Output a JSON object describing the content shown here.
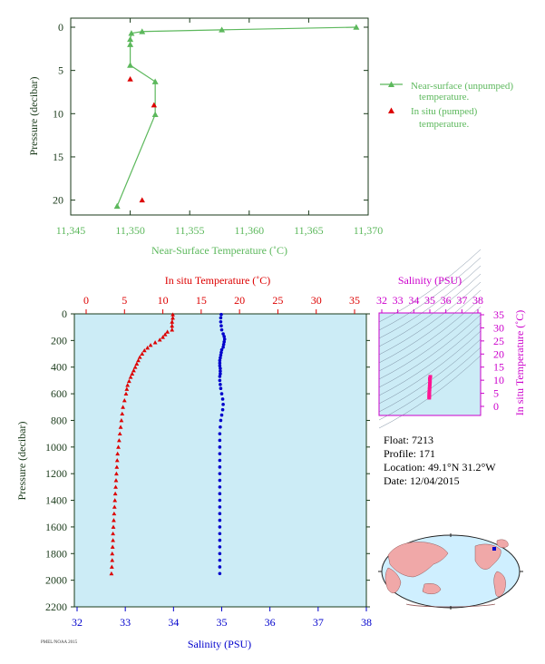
{
  "colors": {
    "green": "#5cb85c",
    "red": "#dd0000",
    "blue": "#0000cc",
    "magenta": "#cc00cc",
    "pink": "#ff1493",
    "plot_bg": "#ccecf6",
    "axis_dark": "#1a3a1a"
  },
  "info": {
    "float": "Float:  7213",
    "profile": "Profile:  171",
    "location": "Location:  49.1°N  31.2°W",
    "date": "Date:  12/04/2015"
  },
  "footer_code": "PMEL/NOAA 2015",
  "chart_data": [
    {
      "type": "line",
      "id": "near_surface",
      "xlabel": "Near-Surface Temperature (˚C)",
      "ylabel": "Pressure (decibar)",
      "xlim": [
        11.345,
        11.37
      ],
      "ylim": [
        0,
        22
      ],
      "y_inverted": true,
      "xticks": [
        "11,345",
        "11,350",
        "11,355",
        "11,360",
        "11,365",
        "11,370"
      ],
      "yticks": [
        "0",
        "5",
        "10",
        "15",
        "20"
      ],
      "legend_position": "right",
      "series": [
        {
          "name": "Near-surface (unpumped) temperature.",
          "marker": "triangle",
          "line": true,
          "points": [
            [
              11.369,
              0.0
            ],
            [
              11.3577,
              0.3
            ],
            [
              11.351,
              0.5
            ],
            [
              11.3501,
              0.7
            ],
            [
              11.35,
              1.4
            ],
            [
              11.35,
              2.0
            ],
            [
              11.35,
              4.4
            ],
            [
              11.3521,
              6.3
            ],
            [
              11.3521,
              10.1
            ],
            [
              11.3489,
              20.7
            ]
          ]
        },
        {
          "name": "In situ (pumped) temperature.",
          "marker": "triangle",
          "line": false,
          "points": [
            [
              11.35,
              6.0
            ],
            [
              11.352,
              9.0
            ],
            [
              11.351,
              20.0
            ]
          ]
        }
      ]
    },
    {
      "type": "scatter",
      "id": "profile",
      "title_top": "In situ Temperature (˚C)",
      "xlabel": "Salinity (PSU)",
      "ylabel": "Pressure (decibar)",
      "temp_lim": [
        0,
        35
      ],
      "sal_lim": [
        32,
        38
      ],
      "ylim": [
        0,
        2200
      ],
      "y_inverted": true,
      "temp_ticks": [
        "0",
        "5",
        "10",
        "15",
        "20",
        "25",
        "30",
        "35"
      ],
      "sal_ticks": [
        "32",
        "33",
        "34",
        "35",
        "36",
        "37",
        "38"
      ],
      "yticks": [
        "0",
        "200",
        "400",
        "600",
        "800",
        "1000",
        "1200",
        "1400",
        "1600",
        "1800",
        "2000",
        "2200"
      ],
      "temperature_profile": [
        [
          11.3,
          5
        ],
        [
          11.3,
          30
        ],
        [
          11.2,
          60
        ],
        [
          11.2,
          90
        ],
        [
          11.2,
          120
        ],
        [
          10.6,
          135
        ],
        [
          10.3,
          155
        ],
        [
          10.0,
          175
        ],
        [
          9.6,
          195
        ],
        [
          9.0,
          215
        ],
        [
          8.4,
          235
        ],
        [
          8.0,
          255
        ],
        [
          7.6,
          275
        ],
        [
          7.3,
          300
        ],
        [
          7.0,
          325
        ],
        [
          6.8,
          350
        ],
        [
          6.6,
          375
        ],
        [
          6.4,
          400
        ],
        [
          6.2,
          425
        ],
        [
          6.0,
          450
        ],
        [
          5.8,
          475
        ],
        [
          5.6,
          505
        ],
        [
          5.4,
          535
        ],
        [
          5.3,
          565
        ],
        [
          5.2,
          600
        ],
        [
          5.0,
          650
        ],
        [
          4.8,
          700
        ],
        [
          4.7,
          750
        ],
        [
          4.6,
          800
        ],
        [
          4.5,
          850
        ],
        [
          4.4,
          900
        ],
        [
          4.3,
          950
        ],
        [
          4.2,
          1000
        ],
        [
          4.1,
          1050
        ],
        [
          4.05,
          1100
        ],
        [
          4.0,
          1150
        ],
        [
          3.95,
          1200
        ],
        [
          3.9,
          1250
        ],
        [
          3.85,
          1300
        ],
        [
          3.8,
          1350
        ],
        [
          3.75,
          1400
        ],
        [
          3.7,
          1450
        ],
        [
          3.65,
          1500
        ],
        [
          3.6,
          1550
        ],
        [
          3.55,
          1600
        ],
        [
          3.5,
          1650
        ],
        [
          3.5,
          1700
        ],
        [
          3.45,
          1750
        ],
        [
          3.4,
          1800
        ],
        [
          3.4,
          1850
        ],
        [
          3.35,
          1900
        ],
        [
          3.3,
          1950
        ]
      ],
      "salinity_profile": [
        [
          34.99,
          5
        ],
        [
          34.98,
          30
        ],
        [
          34.98,
          60
        ],
        [
          34.99,
          90
        ],
        [
          35.0,
          120
        ],
        [
          35.03,
          150
        ],
        [
          35.05,
          170
        ],
        [
          35.06,
          190
        ],
        [
          35.05,
          210
        ],
        [
          35.04,
          230
        ],
        [
          35.03,
          250
        ],
        [
          35.0,
          270
        ],
        [
          34.99,
          290
        ],
        [
          34.98,
          310
        ],
        [
          34.97,
          330
        ],
        [
          34.96,
          350
        ],
        [
          34.96,
          370
        ],
        [
          34.96,
          390
        ],
        [
          34.97,
          410
        ],
        [
          34.97,
          430
        ],
        [
          34.97,
          450
        ],
        [
          34.96,
          470
        ],
        [
          34.96,
          500
        ],
        [
          34.97,
          530
        ],
        [
          34.98,
          560
        ],
        [
          35.0,
          600
        ],
        [
          35.02,
          640
        ],
        [
          35.03,
          680
        ],
        [
          35.02,
          720
        ],
        [
          35.0,
          760
        ],
        [
          34.98,
          800
        ],
        [
          34.97,
          850
        ],
        [
          34.96,
          900
        ],
        [
          34.96,
          950
        ],
        [
          34.96,
          1000
        ],
        [
          34.96,
          1050
        ],
        [
          34.96,
          1100
        ],
        [
          34.96,
          1150
        ],
        [
          34.96,
          1200
        ],
        [
          34.96,
          1250
        ],
        [
          34.96,
          1300
        ],
        [
          34.96,
          1350
        ],
        [
          34.96,
          1400
        ],
        [
          34.96,
          1450
        ],
        [
          34.96,
          1500
        ],
        [
          34.96,
          1550
        ],
        [
          34.96,
          1600
        ],
        [
          34.96,
          1650
        ],
        [
          34.96,
          1700
        ],
        [
          34.96,
          1750
        ],
        [
          34.96,
          1800
        ],
        [
          34.96,
          1850
        ],
        [
          34.96,
          1900
        ],
        [
          34.96,
          1950
        ]
      ]
    },
    {
      "type": "scatter",
      "id": "ts_diagram",
      "title_top": "Salinity (PSU)",
      "ylabel_right": "In situ Temperature (˚C)",
      "sal_lim": [
        32,
        38
      ],
      "temp_lim": [
        -2,
        36
      ],
      "sal_ticks": [
        "32",
        "33",
        "34",
        "35",
        "36",
        "37",
        "38"
      ],
      "temp_ticks": [
        "0",
        "5",
        "10",
        "15",
        "20",
        "25",
        "30",
        "35"
      ],
      "grid": "density contours",
      "points": [
        [
          35.03,
          11.3
        ],
        [
          35.0,
          10.5
        ],
        [
          35.01,
          9.5
        ],
        [
          35.0,
          8.5
        ],
        [
          34.99,
          7.5
        ],
        [
          34.98,
          6.5
        ],
        [
          34.97,
          5.5
        ],
        [
          34.96,
          4.8
        ],
        [
          34.97,
          4.2
        ],
        [
          34.96,
          3.7
        ],
        [
          34.96,
          3.3
        ]
      ]
    }
  ]
}
